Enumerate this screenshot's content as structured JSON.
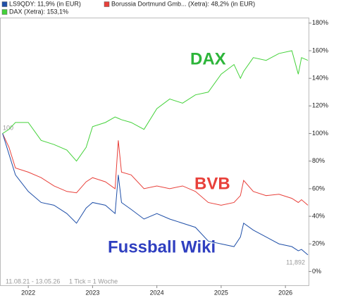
{
  "chart_data": {
    "type": "line",
    "x": [
      2021.6,
      2021.7,
      2021.8,
      2022.0,
      2022.2,
      2022.4,
      2022.6,
      2022.75,
      2022.9,
      2023.0,
      2023.2,
      2023.35,
      2023.4,
      2023.45,
      2023.6,
      2023.8,
      2024.0,
      2024.2,
      2024.4,
      2024.6,
      2024.8,
      2025.0,
      2025.2,
      2025.3,
      2025.35,
      2025.5,
      2025.7,
      2025.9,
      2026.1,
      2026.2,
      2026.25,
      2026.35
    ],
    "series": [
      {
        "name": "LS9QDY: 11,9% (in EUR)",
        "color": "#1f4fa8",
        "values": [
          100,
          85,
          70,
          58,
          50,
          48,
          42,
          35,
          46,
          50,
          48,
          42,
          70,
          50,
          45,
          38,
          42,
          38,
          35,
          32,
          22,
          20,
          18,
          25,
          35,
          30,
          25,
          20,
          18,
          15,
          16,
          12
        ]
      },
      {
        "name": "Borussia Dortmund Gmb... (Xetra): 48,2% (in EUR)",
        "color": "#e8403a",
        "values": [
          100,
          90,
          75,
          72,
          68,
          62,
          58,
          57,
          65,
          68,
          65,
          60,
          95,
          72,
          70,
          60,
          62,
          60,
          62,
          58,
          50,
          48,
          50,
          55,
          66,
          58,
          55,
          56,
          53,
          50,
          52,
          48
        ]
      },
      {
        "name": "DAX (Xetra): 153,1%",
        "color": "#44d23a",
        "values": [
          100,
          103,
          108,
          108,
          95,
          92,
          88,
          80,
          90,
          105,
          108,
          112,
          111,
          110,
          108,
          103,
          118,
          125,
          122,
          128,
          130,
          143,
          150,
          140,
          145,
          155,
          153,
          158,
          160,
          143,
          155,
          153
        ]
      }
    ],
    "xlim": [
      2021.56,
      2026.36
    ],
    "xticks": [
      2022,
      2023,
      2024,
      2025,
      2026
    ],
    "ylim": [
      -10,
      184
    ],
    "yticks": [
      {
        "value": 0,
        "label": "0%"
      },
      {
        "value": 20,
        "label": "20%"
      },
      {
        "value": 40,
        "label": "40%"
      },
      {
        "value": 60,
        "label": "60%"
      },
      {
        "value": 80,
        "label": "80%"
      },
      {
        "value": 100,
        "label": "100%"
      },
      {
        "value": 120,
        "label": "120%"
      },
      {
        "value": 140,
        "label": "140%"
      },
      {
        "value": 160,
        "label": "160%"
      },
      {
        "value": 180,
        "label": "180%"
      }
    ],
    "annotations": {
      "dax": "DAX",
      "bvb": "BVB",
      "wiki": "Fussball Wiki",
      "start": "100",
      "last": "11,892",
      "range": "11.08.21 - 13.05.26",
      "tick": "1 Tick = 1 Woche"
    }
  }
}
